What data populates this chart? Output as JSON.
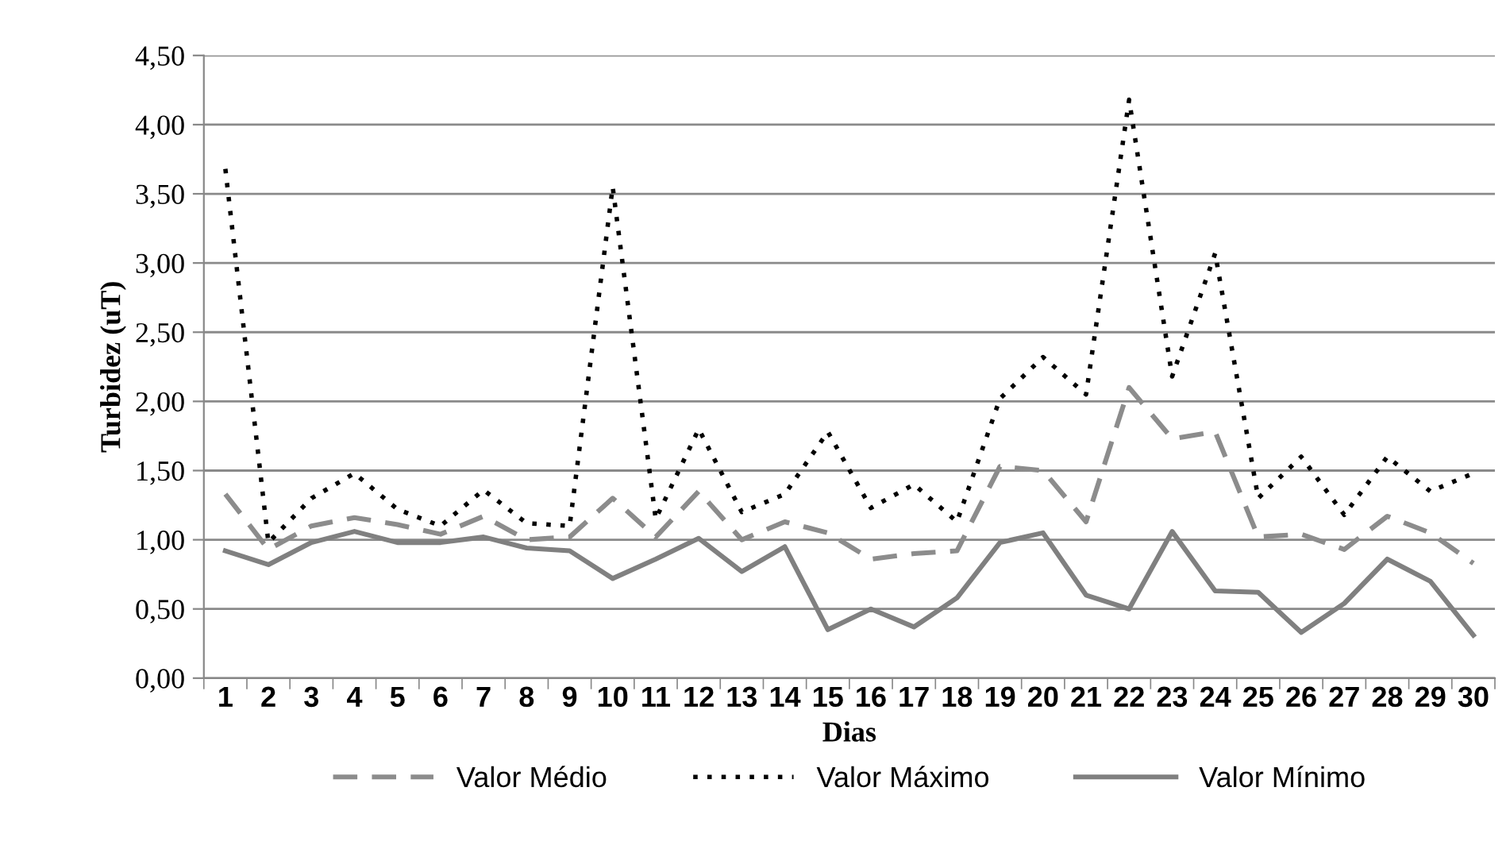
{
  "chart_data": {
    "type": "line",
    "xlabel": "Dias",
    "ylabel": "Turbidez (uT)",
    "categories": [
      "1",
      "2",
      "3",
      "4",
      "5",
      "6",
      "7",
      "8",
      "9",
      "10",
      "11",
      "12",
      "13",
      "14",
      "15",
      "16",
      "17",
      "18",
      "19",
      "20",
      "21",
      "22",
      "23",
      "24",
      "25",
      "26",
      "27",
      "28",
      "29",
      "30"
    ],
    "series": [
      {
        "name": "Valor Médio",
        "color": "#8c8c8c",
        "line_style": "dashed",
        "values": [
          1.33,
          0.93,
          1.1,
          1.16,
          1.11,
          1.04,
          1.17,
          1.0,
          1.02,
          1.3,
          1.02,
          1.35,
          1.0,
          1.13,
          1.05,
          0.86,
          0.9,
          0.92,
          1.53,
          1.5,
          1.13,
          2.1,
          1.73,
          1.78,
          1.02,
          1.04,
          0.93,
          1.17,
          1.05,
          0.83
        ]
      },
      {
        "name": "Valor Máximo",
        "color": "#000000",
        "line_style": "dotted",
        "values": [
          3.68,
          0.98,
          1.3,
          1.48,
          1.22,
          1.1,
          1.36,
          1.12,
          1.1,
          3.55,
          1.15,
          1.8,
          1.2,
          1.33,
          1.78,
          1.23,
          1.4,
          1.13,
          2.02,
          2.32,
          2.05,
          4.18,
          2.18,
          3.07,
          1.3,
          1.6,
          1.18,
          1.6,
          1.35,
          1.48
        ]
      },
      {
        "name": "Valor Mínimo",
        "color": "#808080",
        "line_style": "solid",
        "values": [
          0.92,
          0.82,
          0.98,
          1.06,
          0.98,
          0.98,
          1.02,
          0.94,
          0.92,
          0.72,
          0.86,
          1.01,
          0.77,
          0.95,
          0.35,
          0.5,
          0.37,
          0.58,
          0.98,
          1.05,
          0.6,
          0.5,
          1.06,
          0.63,
          0.62,
          0.33,
          0.54,
          0.86,
          0.7,
          0.31
        ]
      }
    ],
    "ylim": [
      0,
      4.5
    ],
    "yticks": [
      {
        "value": 0,
        "label": "0,00"
      },
      {
        "value": 0.5,
        "label": "0,50"
      },
      {
        "value": 1,
        "label": "1,00"
      },
      {
        "value": 1.5,
        "label": "1,50"
      },
      {
        "value": 2,
        "label": "2,00"
      },
      {
        "value": 2.5,
        "label": "2,50"
      },
      {
        "value": 3,
        "label": "3,00"
      },
      {
        "value": 3.5,
        "label": "3,50"
      },
      {
        "value": 4,
        "label": "4,00"
      },
      {
        "value": 4.5,
        "label": "4,50"
      }
    ],
    "grid": "y",
    "legend": "bottom"
  }
}
